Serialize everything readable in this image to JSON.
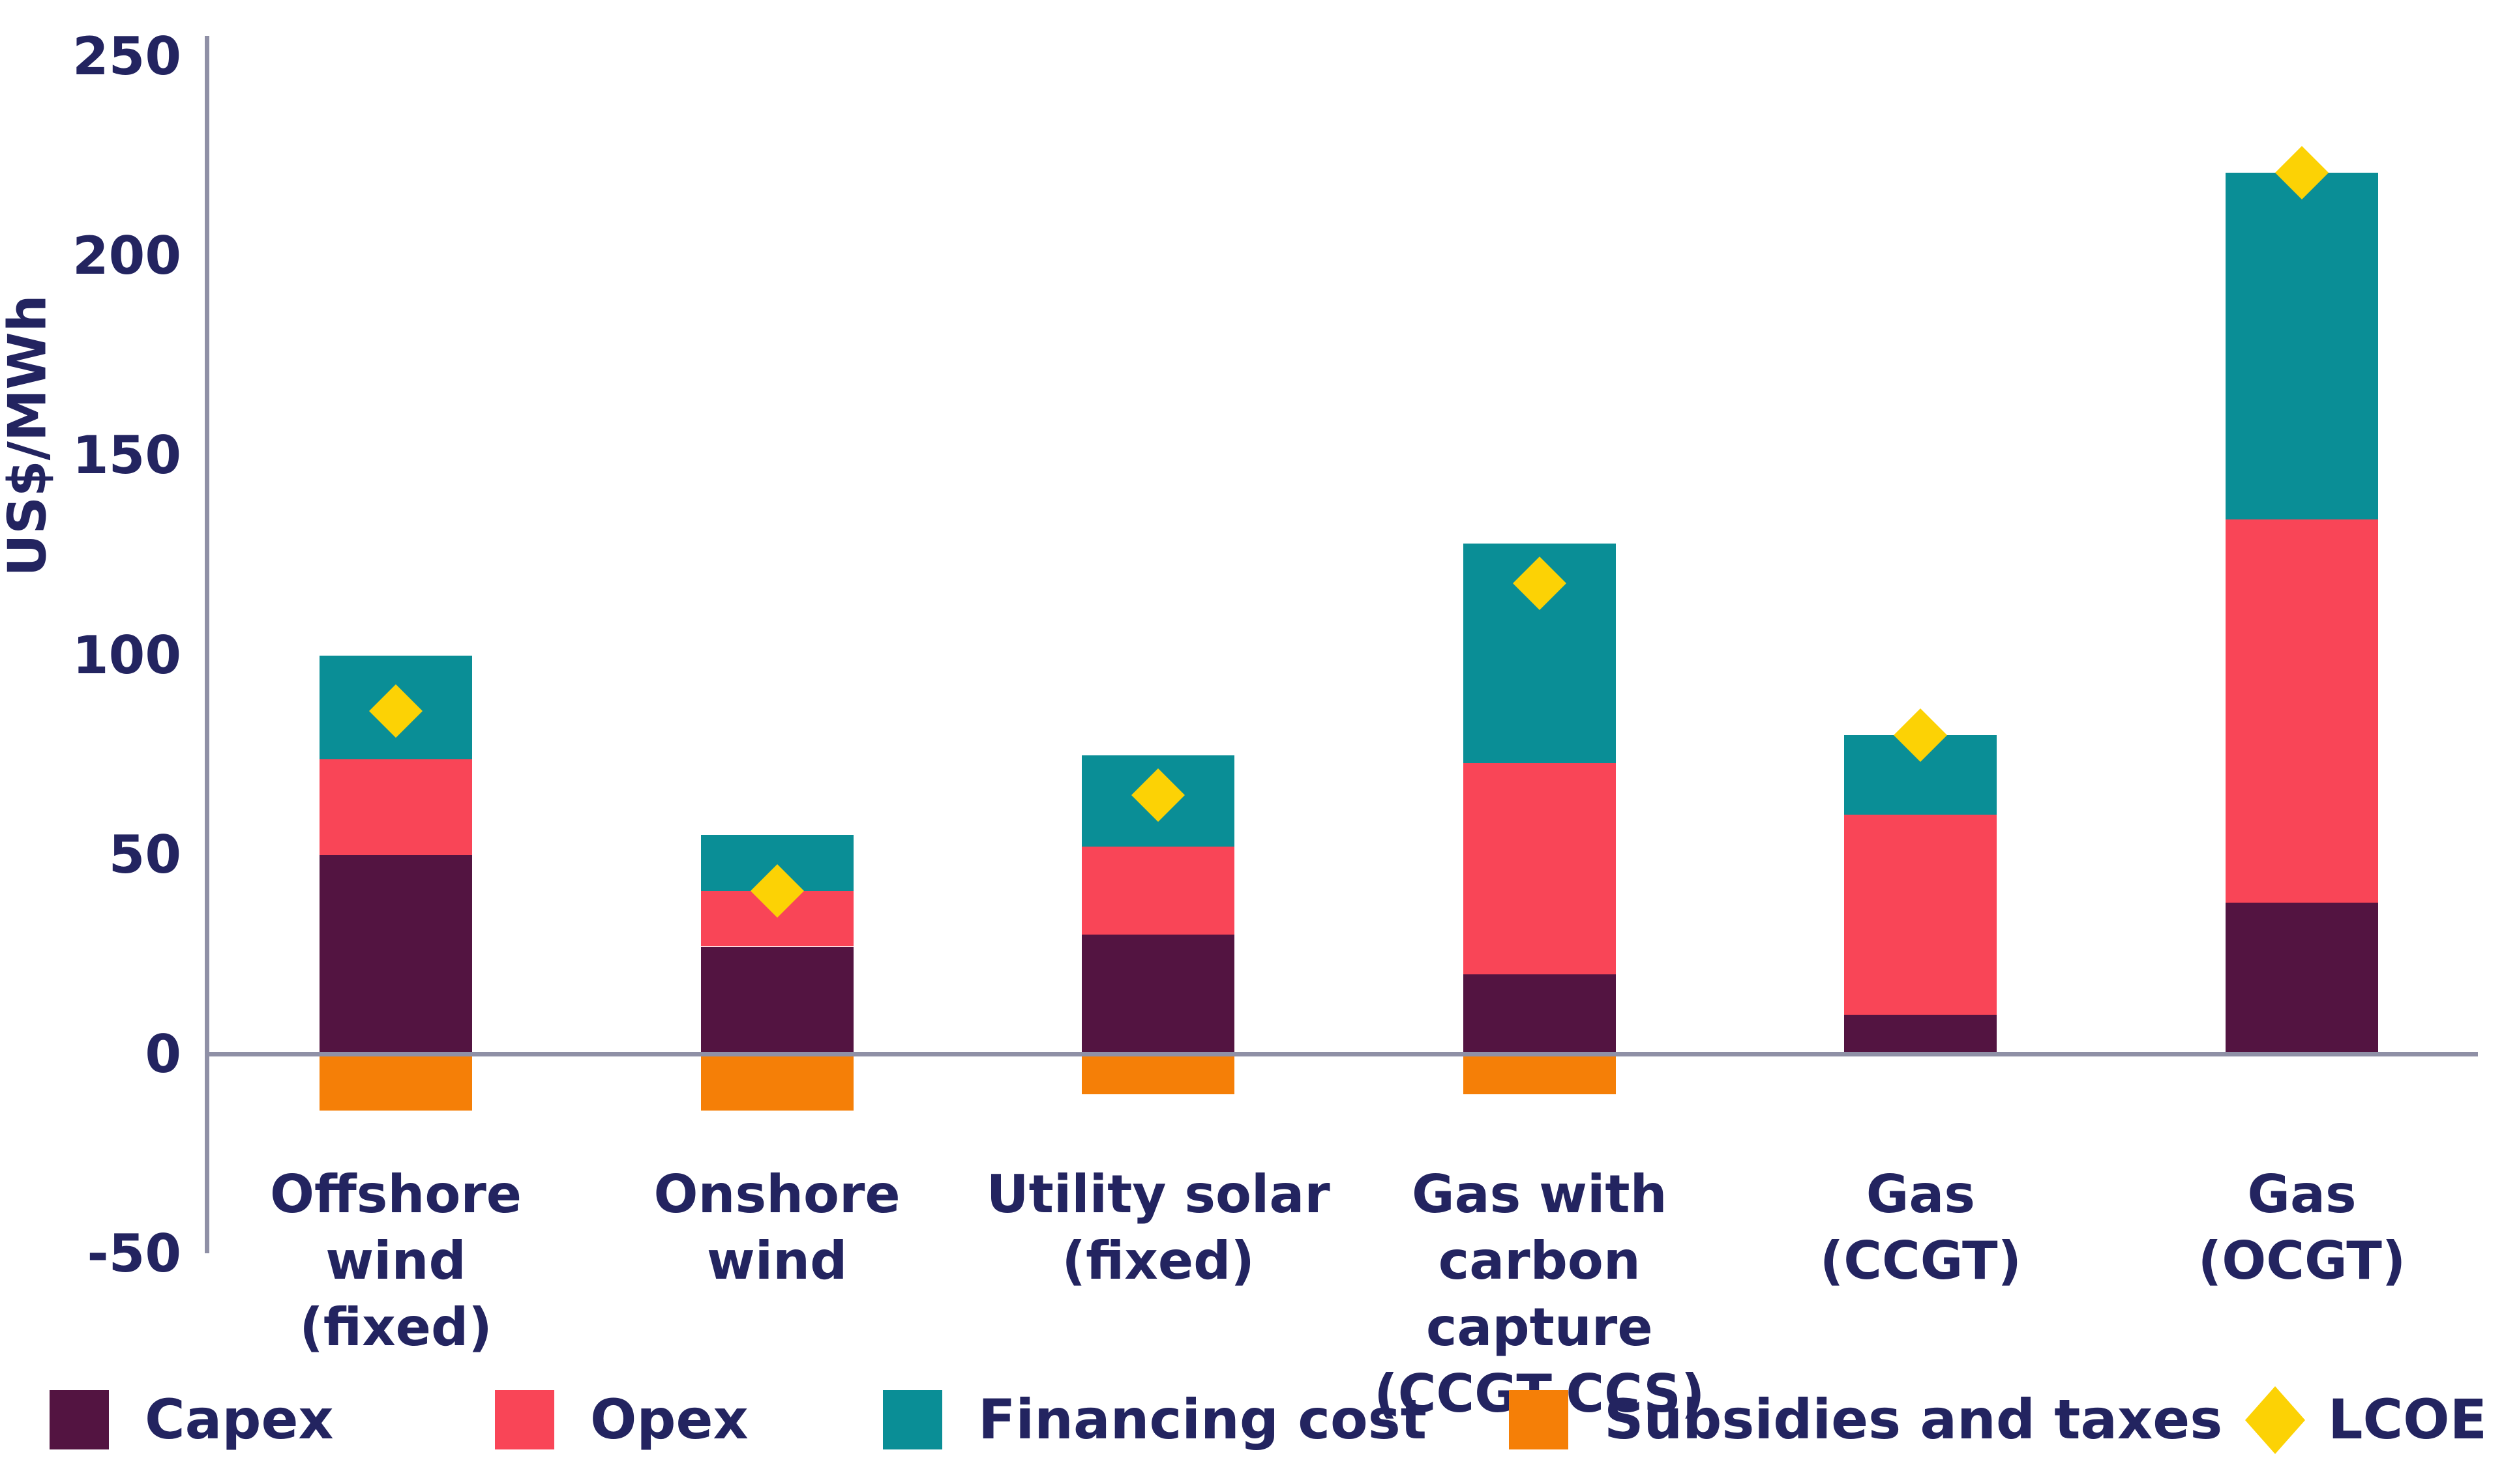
{
  "chart_data": {
    "type": "bar",
    "stacked": true,
    "title": "",
    "xlabel": "",
    "ylabel": "US$/MWh",
    "ylim": [
      -50,
      250
    ],
    "yticks": [
      250,
      200,
      150,
      100,
      50,
      0,
      -50
    ],
    "grid": false,
    "legend_position": "bottom",
    "categories": [
      "Offshore wind (fixed)",
      "Onshore wind",
      "Utility solar (fixed)",
      "Gas with carbon capture (CCGT-CCS)",
      "Gas (CCGT)",
      "Gas (OCGT)"
    ],
    "category_label_lines": [
      [
        "Offshore",
        "wind",
        "(fixed)"
      ],
      [
        "Onshore",
        "wind"
      ],
      [
        "Utility solar",
        "(fixed)"
      ],
      [
        "Gas with",
        "carbon capture",
        "(CCGT-CCS)"
      ],
      [
        "Gas",
        "(CCGT)"
      ],
      [
        "Gas",
        "(OCGT)"
      ]
    ],
    "series": [
      {
        "name": "Capex",
        "color": "#531441",
        "values": [
          50,
          27,
          30,
          20,
          10,
          38
        ]
      },
      {
        "name": "Opex",
        "color": "#F94557",
        "values": [
          24,
          14,
          22,
          53,
          50,
          96
        ]
      },
      {
        "name": "Financing cost",
        "color": "#0A8E96",
        "values": [
          26,
          14,
          23,
          55,
          20,
          87
        ]
      },
      {
        "name": "Subsidies and taxes",
        "color": "#F57F07",
        "values": [
          -14,
          -14,
          -10,
          -10,
          0,
          0
        ]
      }
    ],
    "markers": {
      "name": "LCOE",
      "color": "#FCD205",
      "values": [
        86,
        41,
        65,
        118,
        80,
        221
      ]
    }
  },
  "legend": {
    "items": [
      {
        "label": "Capex",
        "marker": "square",
        "color": "#531441"
      },
      {
        "label": "Opex",
        "marker": "square",
        "color": "#F94557"
      },
      {
        "label": "Financing cost",
        "marker": "square",
        "color": "#0A8E96"
      },
      {
        "label": "Subsidies and taxes",
        "marker": "square",
        "color": "#F57F07"
      },
      {
        "label": "LCOE",
        "marker": "diamond",
        "color": "#FCD205"
      }
    ]
  },
  "colors": {
    "background": "#FFFFFF",
    "text": "#232460",
    "axis_line": "#8F90A6"
  }
}
